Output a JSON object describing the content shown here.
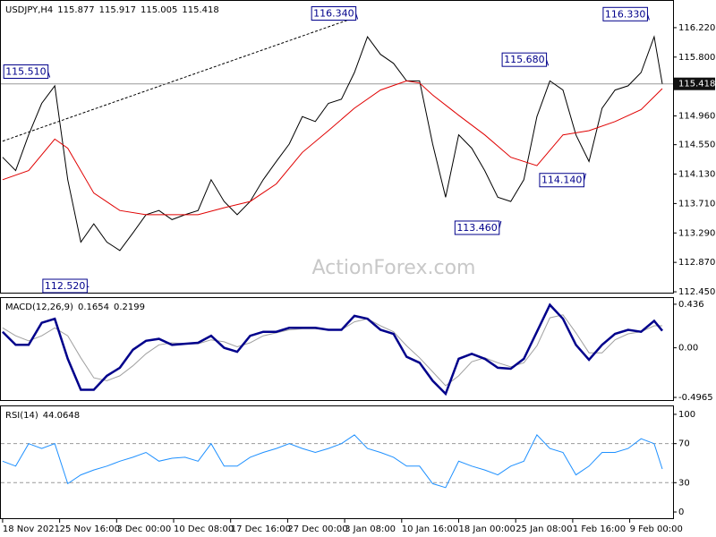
{
  "chart_data": [
    {
      "type": "line",
      "title": "USDJPY,H4",
      "ohlc": [
        115.877,
        115.917,
        115.005,
        115.418
      ],
      "last": 115.418,
      "watermark": "ActionForex.com",
      "xlim": [
        -1.6,
        411.6
      ],
      "ylim": [
        112.425,
        116.602
      ],
      "yticks": [
        {
          "value": 116.22,
          "label": "116.220"
        },
        {
          "value": 115.8,
          "label": "115.800"
        },
        {
          "value": 114.96,
          "label": "114.960"
        },
        {
          "value": 114.55,
          "label": "114.550"
        },
        {
          "value": 114.13,
          "label": "114.130"
        },
        {
          "value": 113.71,
          "label": "113.710"
        },
        {
          "value": 113.29,
          "label": "113.290"
        },
        {
          "value": 112.87,
          "label": "112.870"
        },
        {
          "value": 112.45,
          "label": "112.450"
        }
      ],
      "x": [
        0,
        8,
        16,
        24,
        32,
        40,
        48,
        56,
        64,
        72,
        80,
        88,
        96,
        104,
        112,
        120,
        128,
        136,
        144,
        152,
        160,
        168,
        176,
        184,
        192,
        200,
        208,
        216,
        224,
        232,
        240,
        248,
        256,
        264,
        272,
        280,
        288,
        296,
        304,
        312,
        320,
        328,
        336,
        344,
        352,
        360,
        368,
        376,
        384,
        392,
        400,
        405
      ],
      "series": [
        {
          "color": "#000000",
          "values": [
            114.37,
            114.18,
            114.69,
            115.14,
            115.39,
            114.05,
            113.16,
            113.42,
            113.16,
            113.04,
            113.29,
            113.55,
            113.61,
            113.48,
            113.55,
            113.61,
            114.05,
            113.74,
            113.55,
            113.74,
            114.05,
            114.31,
            114.56,
            114.95,
            114.88,
            115.14,
            115.2,
            115.58,
            116.09,
            115.84,
            115.71,
            115.46,
            115.46,
            114.56,
            113.8,
            114.69,
            114.5,
            114.18,
            113.8,
            113.74,
            114.05,
            114.95,
            115.46,
            115.33,
            114.69,
            114.31,
            115.07,
            115.33,
            115.39,
            115.58,
            116.09,
            115.418
          ]
        },
        {
          "color": "#e00000",
          "x": [
            0,
            16,
            32,
            40,
            56,
            72,
            88,
            104,
            120,
            136,
            152,
            168,
            184,
            200,
            216,
            232,
            248,
            256,
            264,
            280,
            296,
            312,
            328,
            344,
            360,
            376,
            392,
            405
          ],
          "values": [
            114.05,
            114.18,
            114.63,
            114.5,
            113.86,
            113.61,
            113.55,
            113.55,
            113.55,
            113.65,
            113.74,
            113.99,
            114.44,
            114.75,
            115.07,
            115.33,
            115.46,
            115.43,
            115.26,
            114.97,
            114.69,
            114.37,
            114.25,
            114.69,
            114.75,
            114.88,
            115.05,
            115.35
          ]
        }
      ],
      "trendline": {
        "x": [
          0,
          217
        ],
        "y": [
          114.6,
          116.37
        ]
      },
      "annotations": [
        {
          "x": 29,
          "value": {
            "value": 115.51,
            "label": "115.510"
          }
        },
        {
          "x": 53,
          "value": {
            "value": 112.52,
            "label": "112.520"
          }
        },
        {
          "x": 218,
          "value": {
            "value": 116.34,
            "label": "116.340"
          }
        },
        {
          "x": 306,
          "value": {
            "value": 113.46,
            "label": "113.460"
          }
        },
        {
          "x": 335,
          "value": {
            "value": 115.68,
            "label": "115.680"
          }
        },
        {
          "x": 358,
          "value": {
            "value": 114.14,
            "label": "114.140"
          }
        },
        {
          "x": 397,
          "value": {
            "value": 116.33,
            "label": "116.330"
          }
        }
      ]
    },
    {
      "type": "line",
      "title": "MACD(12,26,9)",
      "readings": [
        0.1654,
        0.2199
      ],
      "xlim": [
        -1.6,
        411.6
      ],
      "ylim": [
        -0.532,
        0.498
      ],
      "yticks": [
        0.436,
        {
          "value": 0,
          "label": "0.00"
        },
        -0.4965
      ],
      "x": [
        0,
        8,
        16,
        24,
        32,
        40,
        48,
        56,
        64,
        72,
        80,
        88,
        96,
        104,
        112,
        120,
        128,
        136,
        144,
        152,
        160,
        168,
        176,
        184,
        192,
        200,
        208,
        216,
        224,
        232,
        240,
        248,
        256,
        264,
        272,
        280,
        288,
        296,
        304,
        312,
        320,
        328,
        336,
        344,
        352,
        360,
        368,
        376,
        384,
        392,
        400,
        405
      ],
      "series": [
        {
          "color": "#a0a0a0",
          "values": [
            0.2,
            0.12,
            0.07,
            0.12,
            0.2,
            0.12,
            -0.1,
            -0.3,
            -0.33,
            -0.28,
            -0.18,
            -0.06,
            0.03,
            0.05,
            0.04,
            0.04,
            0.08,
            0.06,
            0.01,
            0.05,
            0.12,
            0.15,
            0.18,
            0.19,
            0.19,
            0.18,
            0.18,
            0.26,
            0.29,
            0.22,
            0.16,
            0.02,
            -0.1,
            -0.24,
            -0.38,
            -0.28,
            -0.14,
            -0.1,
            -0.15,
            -0.19,
            -0.15,
            0.02,
            0.3,
            0.33,
            0.15,
            -0.05,
            -0.05,
            0.08,
            0.14,
            0.16,
            0.22,
            0.22
          ]
        },
        {
          "color": "#00008b",
          "values": [
            0.16,
            0.03,
            0.03,
            0.25,
            0.29,
            -0.11,
            -0.42,
            -0.42,
            -0.28,
            -0.2,
            -0.02,
            0.07,
            0.09,
            0.03,
            0.04,
            0.05,
            0.12,
            0,
            -0.04,
            0.12,
            0.16,
            0.16,
            0.2,
            0.2,
            0.2,
            0.18,
            0.18,
            0.32,
            0.29,
            0.18,
            0.14,
            -0.09,
            -0.15,
            -0.33,
            -0.46,
            -0.11,
            -0.06,
            -0.11,
            -0.2,
            -0.21,
            -0.11,
            0.16,
            0.43,
            0.29,
            0.03,
            -0.12,
            0.03,
            0.14,
            0.18,
            0.16,
            0.27,
            0.17
          ]
        }
      ]
    },
    {
      "type": "line",
      "title": "RSI(14)",
      "readings": [
        44.0648
      ],
      "xlim": [
        -1.6,
        411.6
      ],
      "ylim": [
        -7.3,
        108.2
      ],
      "yticks": [
        100,
        70,
        30,
        0
      ],
      "levels": [
        70,
        30
      ],
      "xticks": [
        {
          "value": 0,
          "label": "18 Nov 2021"
        },
        {
          "value": 35,
          "label": "25 Nov 16:00"
        },
        {
          "value": 70,
          "label": "3 Dec 00:00"
        },
        {
          "value": 105,
          "label": "10 Dec 08:00"
        },
        {
          "value": 140,
          "label": "17 Dec 16:00"
        },
        {
          "value": 175,
          "label": "27 Dec 00:00"
        },
        {
          "value": 210,
          "label": "3 Jan 08:00"
        },
        {
          "value": 245,
          "label": "10 Jan 16:00"
        },
        {
          "value": 280,
          "label": "18 Jan 00:00"
        },
        {
          "value": 315,
          "label": "25 Jan 08:00"
        },
        {
          "value": 350,
          "label": "1 Feb 16:00"
        },
        {
          "value": 385,
          "label": "9 Feb 00:00"
        }
      ],
      "x": [
        0,
        8,
        16,
        24,
        32,
        40,
        48,
        56,
        64,
        72,
        80,
        88,
        96,
        104,
        112,
        120,
        128,
        136,
        144,
        152,
        160,
        168,
        176,
        184,
        192,
        200,
        208,
        216,
        224,
        232,
        240,
        248,
        256,
        264,
        272,
        280,
        288,
        296,
        304,
        312,
        320,
        328,
        336,
        344,
        352,
        360,
        368,
        376,
        384,
        392,
        400,
        405
      ],
      "series": [
        {
          "color": "#1e90ff",
          "values": [
            52,
            47,
            70,
            65,
            70,
            29,
            38,
            43,
            47,
            52,
            56,
            61,
            52,
            55,
            56,
            52,
            70,
            47,
            47,
            56,
            61,
            65,
            70,
            65,
            61,
            65,
            70,
            79,
            65,
            61,
            56,
            47,
            47,
            29,
            25,
            52,
            47,
            43,
            38,
            47,
            52,
            79,
            65,
            61,
            38,
            47,
            61,
            61,
            65,
            75,
            70,
            44.06
          ]
        }
      ]
    }
  ]
}
